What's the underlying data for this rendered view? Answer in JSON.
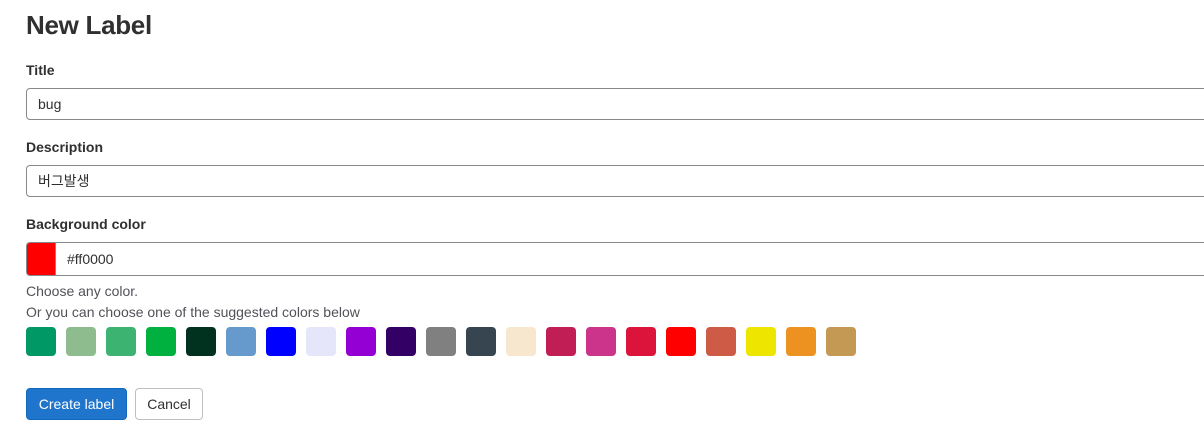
{
  "page": {
    "heading": "New Label"
  },
  "form": {
    "title": {
      "label": "Title",
      "value": "bug"
    },
    "description": {
      "label": "Description",
      "value": "버그발생"
    },
    "background_color": {
      "label": "Background color",
      "value": "#ff0000",
      "help_any": "Choose any color.",
      "help_suggested": "Or you can choose one of the suggested colors below"
    },
    "suggested_colors": [
      "#009966",
      "#8fbc8f",
      "#3cb371",
      "#00b140",
      "#013220",
      "#6699cc",
      "#0000ff",
      "#e6e6fa",
      "#9400d3",
      "#330066",
      "#808080",
      "#36454f",
      "#f7e7ce",
      "#c21e56",
      "#cc338b",
      "#dc143c",
      "#ff0000",
      "#cd5b45",
      "#eee600",
      "#ed9121",
      "#c39953"
    ]
  },
  "actions": {
    "create_label": "Create label",
    "cancel": "Cancel"
  }
}
